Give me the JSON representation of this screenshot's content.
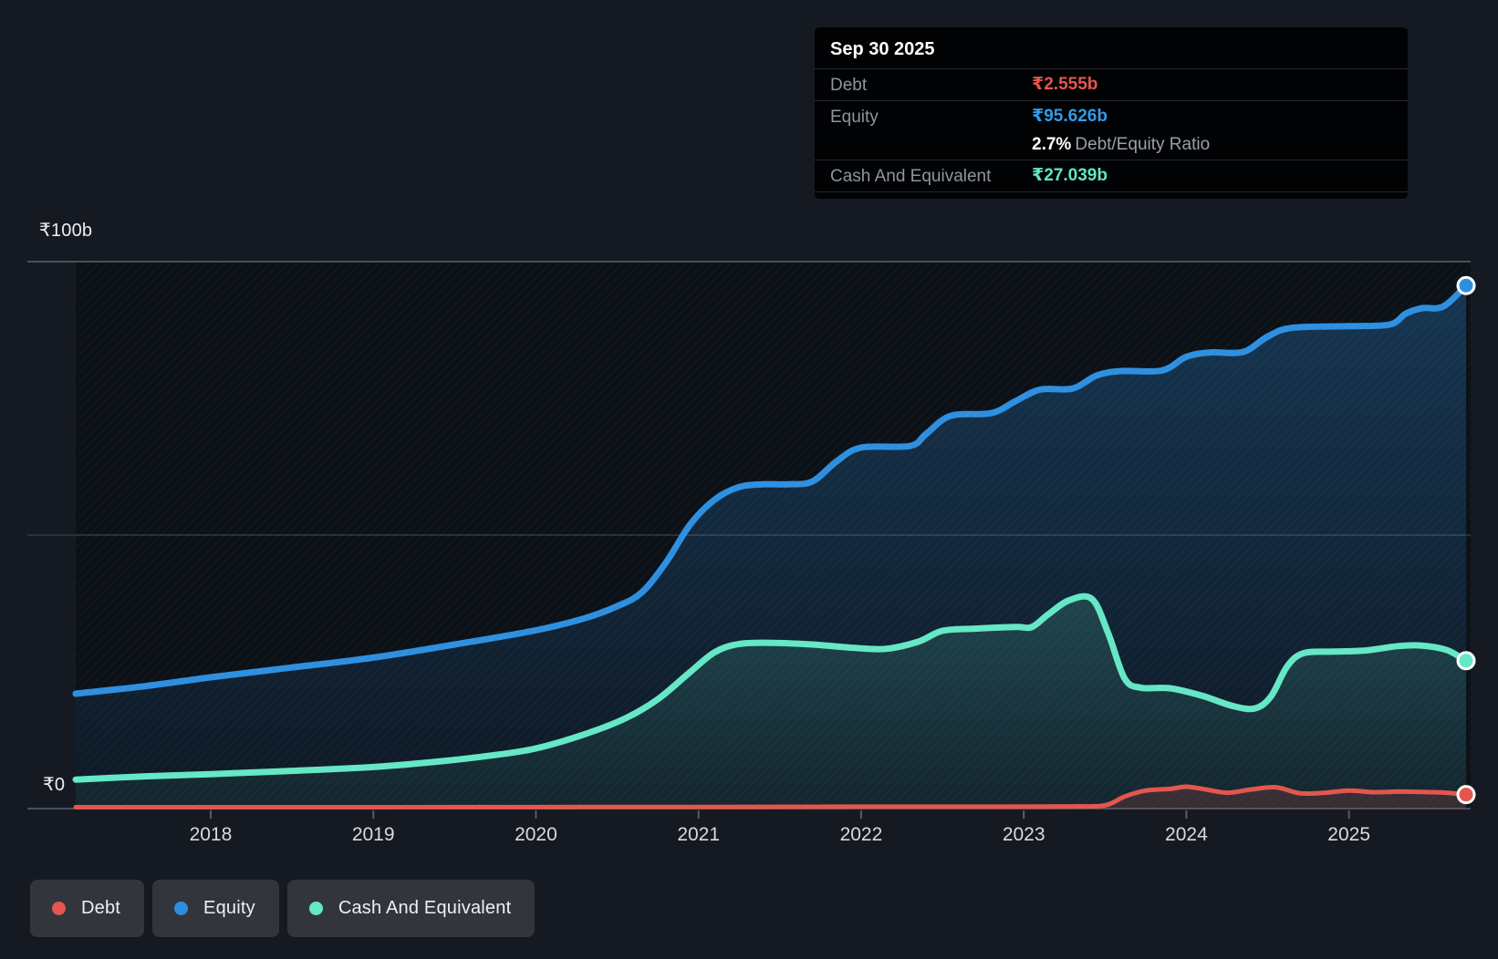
{
  "tooltip": {
    "date": "Sep 30 2025",
    "debt_label": "Debt",
    "debt_value": "₹2.555b",
    "debt_color": "#e4564d",
    "equity_label": "Equity",
    "equity_value": "₹95.626b",
    "equity_color": "#2f9bea",
    "ratio_value": "2.7%",
    "ratio_label": "Debt/Equity Ratio",
    "cash_label": "Cash And Equivalent",
    "cash_value": "₹27.039b",
    "cash_color": "#5fe6c3"
  },
  "legend": {
    "items": [
      {
        "label": "Debt",
        "color": "#e3564e"
      },
      {
        "label": "Equity",
        "color": "#2e8fe0"
      },
      {
        "label": "Cash And Equivalent",
        "color": "#66e7c5"
      }
    ]
  },
  "chart_data": {
    "type": "area",
    "title": "",
    "xlabel": "",
    "ylabel": "",
    "unit": "₹ billions",
    "ylim": [
      0,
      100
    ],
    "x_range": [
      2017.17,
      2025.72
    ],
    "x_ticks": [
      2018,
      2019,
      2020,
      2021,
      2022,
      2023,
      2024,
      2025
    ],
    "y_gridlines": [
      {
        "value": 100,
        "label": "₹100b"
      },
      {
        "value": 50,
        "label": ""
      },
      {
        "value": 0,
        "label": "₹0"
      }
    ],
    "legend_position": "bottom-left",
    "grid": "horizontal-only",
    "end_marker_date": "Sep 30 2025",
    "series": [
      {
        "name": "Equity",
        "color": "#2e8fe0",
        "end_value": 95.626,
        "points": [
          [
            2017.17,
            21
          ],
          [
            2017.6,
            22.4
          ],
          [
            2018,
            24
          ],
          [
            2018.5,
            25.8
          ],
          [
            2019,
            27.6
          ],
          [
            2019.5,
            30
          ],
          [
            2020,
            32.6
          ],
          [
            2020.3,
            34.8
          ],
          [
            2020.5,
            37
          ],
          [
            2020.65,
            39.5
          ],
          [
            2020.8,
            45
          ],
          [
            2020.95,
            52
          ],
          [
            2021.1,
            56.5
          ],
          [
            2021.25,
            58.8
          ],
          [
            2021.4,
            59.3
          ],
          [
            2021.55,
            59.3
          ],
          [
            2021.7,
            59.8
          ],
          [
            2021.85,
            63.5
          ],
          [
            2022,
            66
          ],
          [
            2022.3,
            66.3
          ],
          [
            2022.4,
            68.5
          ],
          [
            2022.55,
            71.8
          ],
          [
            2022.8,
            72.3
          ],
          [
            2022.95,
            74.5
          ],
          [
            2023.1,
            76.6
          ],
          [
            2023.3,
            76.8
          ],
          [
            2023.45,
            79.2
          ],
          [
            2023.6,
            80
          ],
          [
            2023.85,
            80.1
          ],
          [
            2024,
            82.6
          ],
          [
            2024.15,
            83.4
          ],
          [
            2024.35,
            83.5
          ],
          [
            2024.5,
            86.3
          ],
          [
            2024.65,
            87.9
          ],
          [
            2025,
            88.2
          ],
          [
            2025.25,
            88.5
          ],
          [
            2025.35,
            90.5
          ],
          [
            2025.45,
            91.5
          ],
          [
            2025.58,
            91.8
          ],
          [
            2025.72,
            95.626
          ]
        ]
      },
      {
        "name": "Cash And Equivalent",
        "color": "#66e7c5",
        "end_value": 27.039,
        "points": [
          [
            2017.17,
            5.3
          ],
          [
            2017.6,
            5.9
          ],
          [
            2018,
            6.3
          ],
          [
            2018.5,
            6.9
          ],
          [
            2019,
            7.6
          ],
          [
            2019.4,
            8.6
          ],
          [
            2019.75,
            9.8
          ],
          [
            2020,
            11
          ],
          [
            2020.3,
            13.6
          ],
          [
            2020.55,
            16.5
          ],
          [
            2020.75,
            20
          ],
          [
            2020.95,
            25
          ],
          [
            2021.1,
            28.6
          ],
          [
            2021.25,
            30.1
          ],
          [
            2021.45,
            30.3
          ],
          [
            2021.7,
            30
          ],
          [
            2021.95,
            29.4
          ],
          [
            2022.15,
            29.2
          ],
          [
            2022.35,
            30.5
          ],
          [
            2022.5,
            32.5
          ],
          [
            2022.7,
            32.9
          ],
          [
            2022.95,
            33.2
          ],
          [
            2023.05,
            33.2
          ],
          [
            2023.15,
            35.5
          ],
          [
            2023.28,
            38.1
          ],
          [
            2023.42,
            38.3
          ],
          [
            2023.52,
            32
          ],
          [
            2023.62,
            23.8
          ],
          [
            2023.72,
            22.1
          ],
          [
            2023.9,
            22
          ],
          [
            2024.1,
            20.6
          ],
          [
            2024.28,
            18.8
          ],
          [
            2024.42,
            18.3
          ],
          [
            2024.52,
            20.5
          ],
          [
            2024.62,
            26
          ],
          [
            2024.72,
            28.4
          ],
          [
            2024.9,
            28.7
          ],
          [
            2025.1,
            28.9
          ],
          [
            2025.3,
            29.7
          ],
          [
            2025.45,
            29.8
          ],
          [
            2025.6,
            29
          ],
          [
            2025.72,
            27.039
          ]
        ]
      },
      {
        "name": "Debt",
        "color": "#e3564e",
        "end_value": 2.555,
        "points": [
          [
            2017.17,
            0.25
          ],
          [
            2018,
            0.25
          ],
          [
            2019,
            0.25
          ],
          [
            2020,
            0.28
          ],
          [
            2021,
            0.3
          ],
          [
            2022,
            0.35
          ],
          [
            2022.8,
            0.35
          ],
          [
            2023.3,
            0.4
          ],
          [
            2023.5,
            0.6
          ],
          [
            2023.62,
            2.2
          ],
          [
            2023.75,
            3.3
          ],
          [
            2023.9,
            3.6
          ],
          [
            2024,
            4
          ],
          [
            2024.12,
            3.5
          ],
          [
            2024.25,
            2.9
          ],
          [
            2024.4,
            3.5
          ],
          [
            2024.55,
            3.9
          ],
          [
            2024.7,
            2.8
          ],
          [
            2024.85,
            2.9
          ],
          [
            2025,
            3.3
          ],
          [
            2025.15,
            3
          ],
          [
            2025.3,
            3.1
          ],
          [
            2025.45,
            3.05
          ],
          [
            2025.6,
            2.9
          ],
          [
            2025.72,
            2.555
          ]
        ]
      }
    ]
  }
}
